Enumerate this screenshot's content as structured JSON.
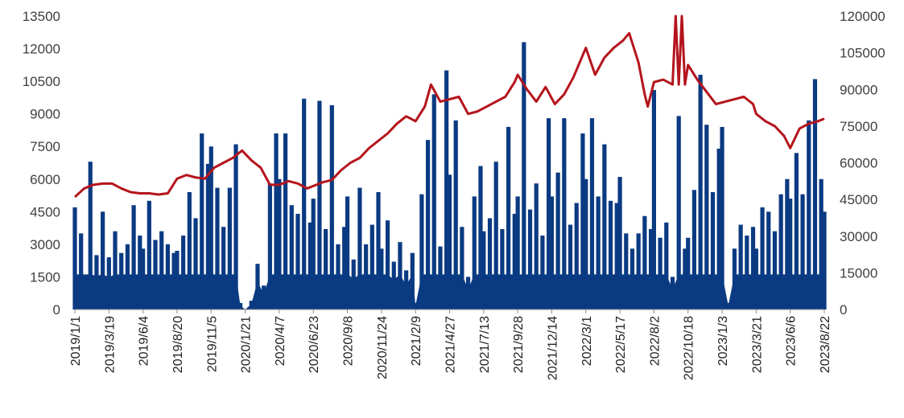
{
  "chart_data": {
    "type": "bar+line",
    "title": "",
    "xlabel": "",
    "ylabel_left": "",
    "ylabel_right": "",
    "left_axis": {
      "min": 0,
      "max": 13500,
      "ticks": [
        0,
        1500,
        3000,
        4500,
        6000,
        7500,
        9000,
        10500,
        12000,
        13500
      ]
    },
    "right_axis": {
      "min": 0,
      "max": 120000,
      "ticks": [
        0,
        15000,
        30000,
        45000,
        60000,
        75000,
        90000,
        105000,
        120000
      ]
    },
    "x_range": [
      "2019/1/1",
      "2023/8/22"
    ],
    "x_tick_labels": [
      "2019/1/1",
      "2019/3/19",
      "2019/6/4",
      "2019/8/20",
      "2019/11/5",
      "2020/1/21",
      "2020/4/7",
      "2020/6/23",
      "2020/9/8",
      "2020/11/24",
      "2021/2/9",
      "2021/4/27",
      "2021/7/13",
      "2021/9/28",
      "2021/12/14",
      "2022/3/1",
      "2022/5/17",
      "2022/8/2",
      "2022/10/18",
      "2023/1/3",
      "2023/3/21",
      "2023/6/6",
      "2023/8/22"
    ],
    "grid": false,
    "legend": "none",
    "series": [
      {
        "type": "bar",
        "axis": "left",
        "color": "#0a3a82",
        "points": [
          [
            "2019/1/1",
            4700
          ],
          [
            "2019/1/15",
            3500
          ],
          [
            "2019/2/5",
            6800
          ],
          [
            "2019/2/19",
            2500
          ],
          [
            "2019/3/5",
            4500
          ],
          [
            "2019/3/19",
            2400
          ],
          [
            "2019/4/2",
            3600
          ],
          [
            "2019/4/16",
            2600
          ],
          [
            "2019/4/30",
            3000
          ],
          [
            "2019/5/14",
            4800
          ],
          [
            "2019/5/28",
            3400
          ],
          [
            "2019/6/4",
            2800
          ],
          [
            "2019/6/18",
            5000
          ],
          [
            "2019/7/2",
            3200
          ],
          [
            "2019/7/16",
            3600
          ],
          [
            "2019/7/30",
            3000
          ],
          [
            "2019/8/13",
            2600
          ],
          [
            "2019/8/20",
            2700
          ],
          [
            "2019/9/3",
            3400
          ],
          [
            "2019/9/17",
            5400
          ],
          [
            "2019/10/1",
            4200
          ],
          [
            "2019/10/15",
            8100
          ],
          [
            "2019/10/29",
            6700
          ],
          [
            "2019/11/5",
            7500
          ],
          [
            "2019/11/19",
            5600
          ],
          [
            "2019/12/3",
            3800
          ],
          [
            "2019/12/17",
            5600
          ],
          [
            "2019/12/31",
            7600
          ],
          [
            "2020/1/10",
            300
          ],
          [
            "2020/1/21",
            0
          ],
          [
            "2020/2/4",
            400
          ],
          [
            "2020/2/18",
            2100
          ],
          [
            "2020/3/3",
            1100
          ],
          [
            "2020/3/17",
            5800
          ],
          [
            "2020/3/31",
            8100
          ],
          [
            "2020/4/7",
            6000
          ],
          [
            "2020/4/21",
            8100
          ],
          [
            "2020/5/5",
            4800
          ],
          [
            "2020/5/19",
            4400
          ],
          [
            "2020/6/2",
            9700
          ],
          [
            "2020/6/16",
            4000
          ],
          [
            "2020/6/23",
            5100
          ],
          [
            "2020/7/7",
            9600
          ],
          [
            "2020/7/21",
            3700
          ],
          [
            "2020/8/4",
            9400
          ],
          [
            "2020/8/18",
            3000
          ],
          [
            "2020/9/1",
            3800
          ],
          [
            "2020/9/8",
            5200
          ],
          [
            "2020/9/22",
            2300
          ],
          [
            "2020/10/6",
            5600
          ],
          [
            "2020/10/20",
            3000
          ],
          [
            "2020/11/3",
            3900
          ],
          [
            "2020/11/17",
            5400
          ],
          [
            "2020/11/24",
            2800
          ],
          [
            "2020/12/8",
            4100
          ],
          [
            "2020/12/22",
            2200
          ],
          [
            "2021/1/5",
            3100
          ],
          [
            "2021/1/19",
            1800
          ],
          [
            "2021/2/2",
            2600
          ],
          [
            "2021/2/9",
            300
          ],
          [
            "2021/2/23",
            5300
          ],
          [
            "2021/3/9",
            7800
          ],
          [
            "2021/3/23",
            9900
          ],
          [
            "2021/4/6",
            2900
          ],
          [
            "2021/4/20",
            11000
          ],
          [
            "2021/4/27",
            6200
          ],
          [
            "2021/5/11",
            8700
          ],
          [
            "2021/5/25",
            3800
          ],
          [
            "2021/6/8",
            1500
          ],
          [
            "2021/6/22",
            5200
          ],
          [
            "2021/7/6",
            6600
          ],
          [
            "2021/7/13",
            3600
          ],
          [
            "2021/7/27",
            4200
          ],
          [
            "2021/8/10",
            6800
          ],
          [
            "2021/8/24",
            3700
          ],
          [
            "2021/9/7",
            8400
          ],
          [
            "2021/9/21",
            4400
          ],
          [
            "2021/9/28",
            5200
          ],
          [
            "2021/10/12",
            12300
          ],
          [
            "2021/10/26",
            4600
          ],
          [
            "2021/11/9",
            5800
          ],
          [
            "2021/11/23",
            3400
          ],
          [
            "2021/12/7",
            8800
          ],
          [
            "2021/12/14",
            5200
          ],
          [
            "2021/12/28",
            6300
          ],
          [
            "2022/1/11",
            8800
          ],
          [
            "2022/1/25",
            3900
          ],
          [
            "2022/2/8",
            4900
          ],
          [
            "2022/2/22",
            8100
          ],
          [
            "2022/3/1",
            6000
          ],
          [
            "2022/3/15",
            8800
          ],
          [
            "2022/3/29",
            5200
          ],
          [
            "2022/4/12",
            7600
          ],
          [
            "2022/4/26",
            5000
          ],
          [
            "2022/5/10",
            4900
          ],
          [
            "2022/5/17",
            6100
          ],
          [
            "2022/5/31",
            3500
          ],
          [
            "2022/6/14",
            2800
          ],
          [
            "2022/6/28",
            3500
          ],
          [
            "2022/7/12",
            4300
          ],
          [
            "2022/7/26",
            3700
          ],
          [
            "2022/8/2",
            10100
          ],
          [
            "2022/8/16",
            3300
          ],
          [
            "2022/8/30",
            4000
          ],
          [
            "2022/9/13",
            1500
          ],
          [
            "2022/9/27",
            8900
          ],
          [
            "2022/10/11",
            2800
          ],
          [
            "2022/10/18",
            3300
          ],
          [
            "2022/11/1",
            5500
          ],
          [
            "2022/11/15",
            10800
          ],
          [
            "2022/11/29",
            8500
          ],
          [
            "2022/12/13",
            5400
          ],
          [
            "2022/12/27",
            7400
          ],
          [
            "2023/1/3",
            8400
          ],
          [
            "2023/1/17",
            300
          ],
          [
            "2023/1/31",
            2800
          ],
          [
            "2023/2/14",
            3900
          ],
          [
            "2023/2/28",
            3400
          ],
          [
            "2023/3/14",
            3800
          ],
          [
            "2023/3/21",
            2800
          ],
          [
            "2023/4/4",
            4700
          ],
          [
            "2023/4/18",
            4500
          ],
          [
            "2023/5/2",
            3600
          ],
          [
            "2023/5/16",
            5300
          ],
          [
            "2023/5/30",
            6000
          ],
          [
            "2023/6/6",
            5100
          ],
          [
            "2023/6/20",
            7200
          ],
          [
            "2023/7/4",
            5300
          ],
          [
            "2023/7/18",
            8700
          ],
          [
            "2023/8/1",
            10600
          ],
          [
            "2023/8/15",
            6000
          ],
          [
            "2023/8/22",
            4500
          ]
        ]
      },
      {
        "type": "line",
        "axis": "right",
        "color": "#b5141c",
        "points": [
          [
            "2019/1/1",
            46000
          ],
          [
            "2019/1/22",
            49500
          ],
          [
            "2019/2/12",
            51000
          ],
          [
            "2019/3/5",
            51500
          ],
          [
            "2019/3/26",
            51500
          ],
          [
            "2019/4/16",
            49500
          ],
          [
            "2019/5/7",
            48000
          ],
          [
            "2019/5/28",
            47500
          ],
          [
            "2019/6/18",
            47500
          ],
          [
            "2019/7/9",
            47000
          ],
          [
            "2019/7/30",
            47500
          ],
          [
            "2019/8/20",
            53500
          ],
          [
            "2019/9/10",
            55000
          ],
          [
            "2019/10/1",
            54000
          ],
          [
            "2019/10/22",
            53500
          ],
          [
            "2019/11/12",
            58000
          ],
          [
            "2019/12/3",
            60000
          ],
          [
            "2019/12/24",
            62000
          ],
          [
            "2020/1/14",
            65000
          ],
          [
            "2020/2/4",
            61000
          ],
          [
            "2020/2/25",
            58000
          ],
          [
            "2020/3/17",
            51000
          ],
          [
            "2020/4/7",
            51000
          ],
          [
            "2020/4/28",
            52500
          ],
          [
            "2020/5/19",
            51500
          ],
          [
            "2020/6/9",
            49500
          ],
          [
            "2020/6/23",
            50500
          ],
          [
            "2020/7/14",
            52000
          ],
          [
            "2020/8/4",
            53000
          ],
          [
            "2020/8/25",
            57000
          ],
          [
            "2020/9/15",
            60000
          ],
          [
            "2020/10/6",
            62000
          ],
          [
            "2020/10/27",
            66000
          ],
          [
            "2020/11/17",
            69000
          ],
          [
            "2020/12/8",
            72000
          ],
          [
            "2020/12/29",
            76000
          ],
          [
            "2021/1/19",
            79000
          ],
          [
            "2021/2/9",
            77000
          ],
          [
            "2021/3/2",
            83000
          ],
          [
            "2021/3/16",
            92000
          ],
          [
            "2021/4/6",
            85000
          ],
          [
            "2021/4/27",
            86000
          ],
          [
            "2021/5/18",
            87000
          ],
          [
            "2021/6/8",
            80000
          ],
          [
            "2021/6/29",
            81000
          ],
          [
            "2021/7/20",
            83000
          ],
          [
            "2021/8/10",
            85000
          ],
          [
            "2021/8/31",
            87000
          ],
          [
            "2021/9/21",
            93000
          ],
          [
            "2021/9/28",
            96000
          ],
          [
            "2021/10/19",
            90000
          ],
          [
            "2021/11/9",
            85000
          ],
          [
            "2021/11/30",
            91000
          ],
          [
            "2021/12/21",
            84000
          ],
          [
            "2022/1/11",
            88000
          ],
          [
            "2022/2/1",
            95000
          ],
          [
            "2022/3/1",
            107000
          ],
          [
            "2022/3/22",
            96000
          ],
          [
            "2022/4/12",
            103000
          ],
          [
            "2022/5/3",
            107000
          ],
          [
            "2022/5/24",
            110000
          ],
          [
            "2022/6/7",
            113000
          ],
          [
            "2022/6/28",
            101000
          ],
          [
            "2022/7/12",
            88000
          ],
          [
            "2022/7/19",
            83000
          ],
          [
            "2022/8/2",
            93000
          ],
          [
            "2022/8/23",
            94000
          ],
          [
            "2022/9/13",
            92000
          ],
          [
            "2022/9/20",
            122000
          ],
          [
            "2022/9/27",
            92000
          ],
          [
            "2022/10/4",
            122000
          ],
          [
            "2022/10/11",
            92000
          ],
          [
            "2022/10/18",
            100000
          ],
          [
            "2022/11/8",
            94000
          ],
          [
            "2022/11/29",
            89000
          ],
          [
            "2022/12/20",
            84000
          ],
          [
            "2023/1/10",
            85000
          ],
          [
            "2023/1/31",
            86000
          ],
          [
            "2023/2/21",
            87000
          ],
          [
            "2023/3/14",
            84000
          ],
          [
            "2023/3/21",
            80000
          ],
          [
            "2023/4/11",
            77000
          ],
          [
            "2023/5/2",
            75000
          ],
          [
            "2023/5/23",
            71000
          ],
          [
            "2023/6/6",
            66000
          ],
          [
            "2023/6/27",
            74000
          ],
          [
            "2023/7/18",
            76000
          ],
          [
            "2023/8/8",
            77000
          ],
          [
            "2023/8/22",
            78000
          ]
        ]
      }
    ]
  }
}
